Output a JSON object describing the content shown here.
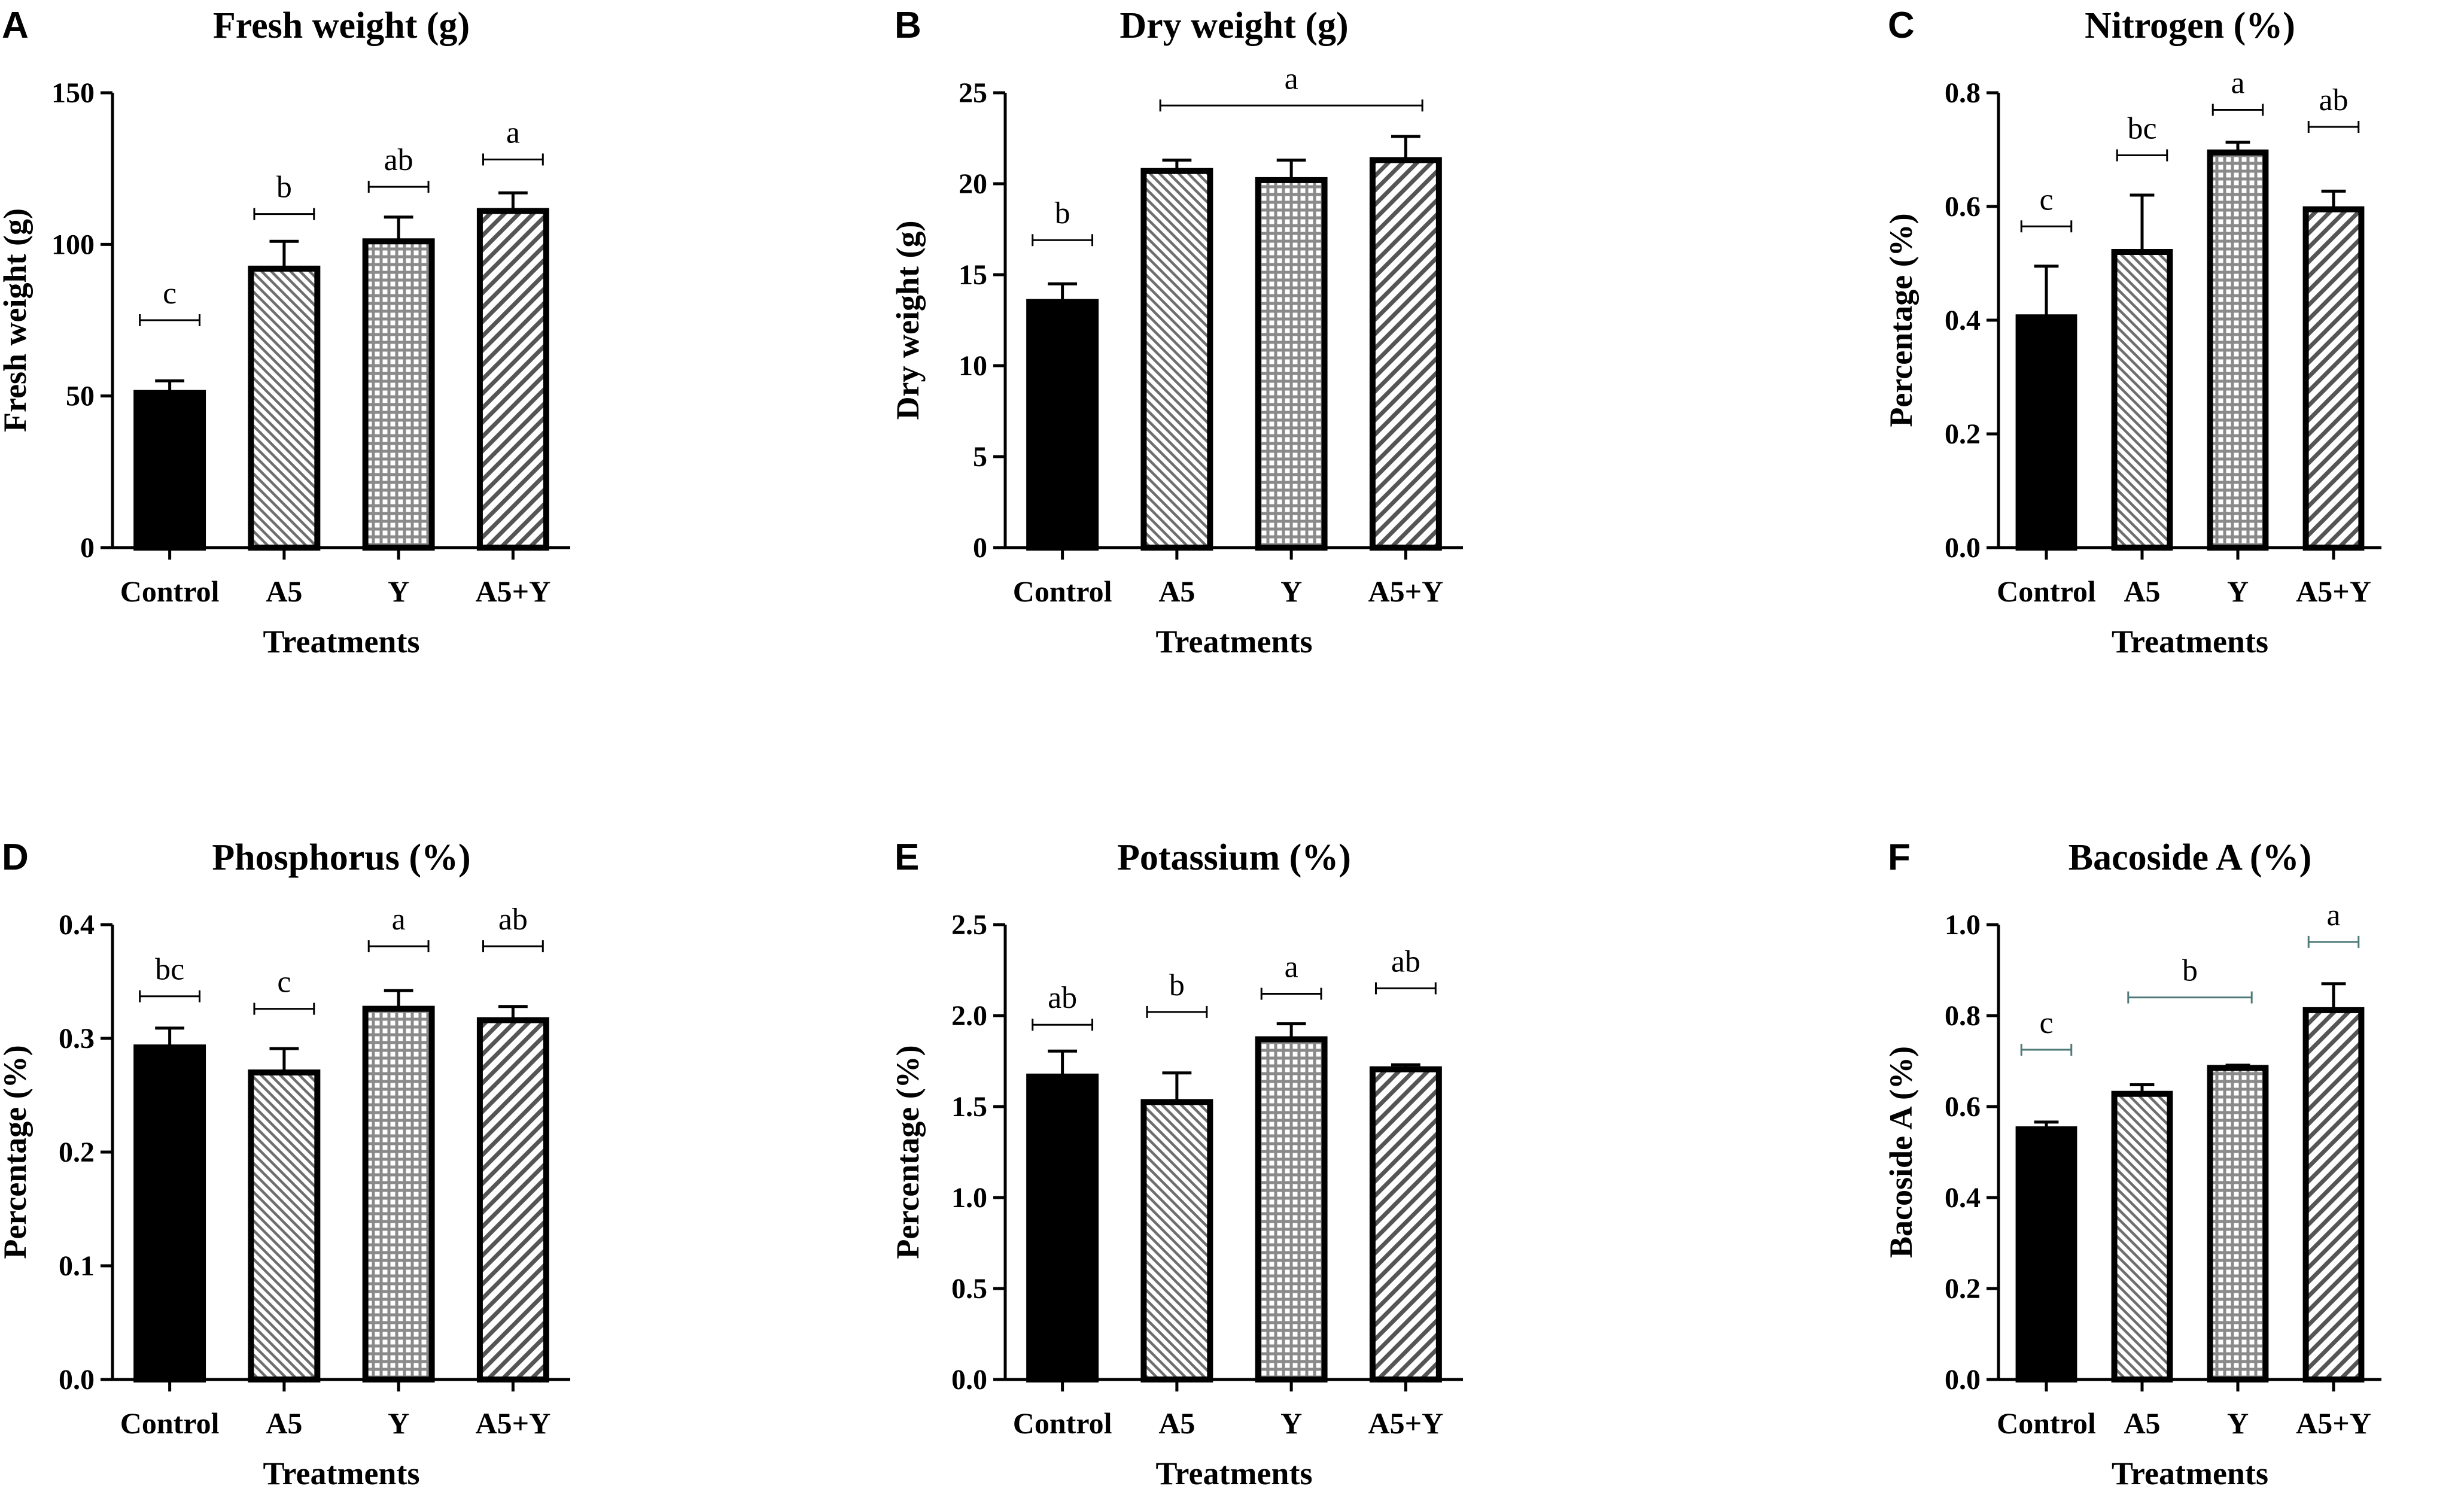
{
  "figure": {
    "colors": {
      "bar_stroke": "#000000",
      "control_fill": "#000000",
      "pattern_bg": "#ffffff",
      "pattern_a5": "#6e6e6e",
      "pattern_y": "#8a8a8a",
      "pattern_a5y": "#555555",
      "sig_bracket": "#000000",
      "sig_bracket_teal": "#4f7a78"
    }
  },
  "chart_data": [
    {
      "panel": "A",
      "type": "bar",
      "title": "Fresh weight (g)",
      "xlabel": "Treatments",
      "ylabel": "Fresh weight (g)",
      "categories": [
        "Control",
        "A5",
        "Y",
        "A5+Y"
      ],
      "values": [
        51,
        92,
        101,
        111
      ],
      "errors": [
        4,
        9,
        8,
        6
      ],
      "ylim": [
        0,
        150
      ],
      "yticks": [
        0,
        50,
        100,
        150
      ],
      "ytick_labels": [
        "0",
        "50",
        "100",
        "150"
      ],
      "letters": [
        {
          "label": "c",
          "from": 0,
          "to": 0,
          "y": 75
        },
        {
          "label": "b",
          "from": 1,
          "to": 1,
          "y": 110
        },
        {
          "label": "ab",
          "from": 2,
          "to": 2,
          "y": 119
        },
        {
          "label": "a",
          "from": 3,
          "to": 3,
          "y": 128
        }
      ]
    },
    {
      "panel": "B",
      "type": "bar",
      "title": "Dry weight (g)",
      "xlabel": "Treatments",
      "ylabel": "Dry weight (g)",
      "categories": [
        "Control",
        "A5",
        "Y",
        "A5+Y"
      ],
      "values": [
        13.5,
        20.7,
        20.2,
        21.3
      ],
      "errors": [
        1.0,
        0.6,
        1.1,
        1.3
      ],
      "ylim": [
        0,
        25
      ],
      "yticks": [
        0,
        5,
        10,
        15,
        20,
        25
      ],
      "ytick_labels": [
        "0",
        "5",
        "10",
        "15",
        "20",
        "25"
      ],
      "letters": [
        {
          "label": "b",
          "from": 0,
          "to": 0,
          "y": 16.9
        },
        {
          "label": "a",
          "from": 1,
          "to": 3,
          "y": 24.3
        }
      ]
    },
    {
      "panel": "C",
      "type": "bar",
      "title": "Nitrogen (%)",
      "xlabel": "Treatments",
      "ylabel": "Percentage (%)",
      "categories": [
        "Control",
        "A5",
        "Y",
        "A5+Y"
      ],
      "values": [
        0.405,
        0.52,
        0.695,
        0.595
      ],
      "errors": [
        0.09,
        0.1,
        0.018,
        0.032
      ],
      "ylim": [
        0,
        0.8
      ],
      "yticks": [
        0,
        0.2,
        0.4,
        0.6,
        0.8
      ],
      "ytick_labels": [
        "0.0",
        "0.2",
        "0.4",
        "0.6",
        "0.8"
      ],
      "letters": [
        {
          "label": "c",
          "from": 0,
          "to": 0,
          "y": 0.565
        },
        {
          "label": "bc",
          "from": 1,
          "to": 1,
          "y": 0.69
        },
        {
          "label": "a",
          "from": 2,
          "to": 2,
          "y": 0.77
        },
        {
          "label": "ab",
          "from": 3,
          "to": 3,
          "y": 0.74
        }
      ]
    },
    {
      "panel": "D",
      "type": "bar",
      "title": "Phosphorus (%)",
      "xlabel": "Treatments",
      "ylabel": "Percentage (%)",
      "categories": [
        "Control",
        "A5",
        "Y",
        "A5+Y"
      ],
      "values": [
        0.292,
        0.27,
        0.326,
        0.316
      ],
      "errors": [
        0.017,
        0.021,
        0.016,
        0.012
      ],
      "ylim": [
        0,
        0.4
      ],
      "yticks": [
        0,
        0.1,
        0.2,
        0.3,
        0.4
      ],
      "ytick_labels": [
        "0.0",
        "0.1",
        "0.2",
        "0.3",
        "0.4"
      ],
      "letters": [
        {
          "label": "bc",
          "from": 0,
          "to": 0,
          "y": 0.337
        },
        {
          "label": "c",
          "from": 1,
          "to": 1,
          "y": 0.326
        },
        {
          "label": "a",
          "from": 2,
          "to": 2,
          "y": 0.381
        },
        {
          "label": "ab",
          "from": 3,
          "to": 3,
          "y": 0.381
        }
      ]
    },
    {
      "panel": "E",
      "type": "bar",
      "title": "Potassium (%)",
      "xlabel": "Treatments",
      "ylabel": "Percentage (%)",
      "categories": [
        "Control",
        "A5",
        "Y",
        "A5+Y"
      ],
      "values": [
        1.665,
        1.525,
        1.87,
        1.705
      ],
      "errors": [
        0.14,
        0.16,
        0.085,
        0.025
      ],
      "ylim": [
        0,
        2.5
      ],
      "yticks": [
        0,
        0.5,
        1.0,
        1.5,
        2.0,
        2.5
      ],
      "ytick_labels": [
        "0.0",
        "0.5",
        "1.0",
        "1.5",
        "2.0",
        "2.5"
      ],
      "letters": [
        {
          "label": "ab",
          "from": 0,
          "to": 0,
          "y": 1.95
        },
        {
          "label": "b",
          "from": 1,
          "to": 1,
          "y": 2.02
        },
        {
          "label": "a",
          "from": 2,
          "to": 2,
          "y": 2.12
        },
        {
          "label": "ab",
          "from": 3,
          "to": 3,
          "y": 2.15
        }
      ]
    },
    {
      "panel": "F",
      "type": "bar",
      "title": "Bacoside A (%)",
      "xlabel": "Treatments",
      "ylabel": "Bacoside A (%)",
      "categories": [
        "Control",
        "A5",
        "Y",
        "A5+Y"
      ],
      "values": [
        0.55,
        0.628,
        0.685,
        0.812
      ],
      "errors": [
        0.016,
        0.02,
        0.006,
        0.058
      ],
      "ylim": [
        0,
        1.0
      ],
      "yticks": [
        0,
        0.2,
        0.4,
        0.6,
        0.8,
        1.0
      ],
      "ytick_labels": [
        "0.0",
        "0.2",
        "0.4",
        "0.6",
        "0.8",
        "1.0"
      ],
      "letters": [
        {
          "label": "c",
          "from": 0,
          "to": 0,
          "y": 0.725,
          "teal": true
        },
        {
          "label": "b",
          "from": 1,
          "to": 2,
          "y": 0.84,
          "teal": true
        },
        {
          "label": "a",
          "from": 3,
          "to": 3,
          "y": 0.962,
          "teal": true
        }
      ]
    }
  ]
}
